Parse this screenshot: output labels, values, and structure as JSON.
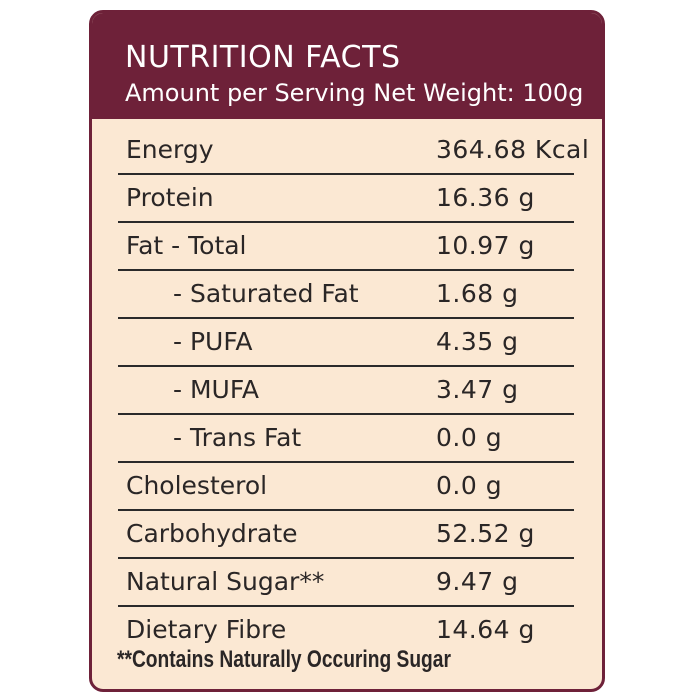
{
  "header": {
    "title": "NUTRITION FACTS",
    "subtitle": "Amount per Serving Net Weight: 100g"
  },
  "table": {
    "rows": [
      [
        "Energy",
        "364.68 Kcal"
      ],
      [
        "Protein",
        "16.36 g"
      ],
      [
        "Fat - Total",
        "10.97 g"
      ],
      [
        "- Saturated Fat",
        "1.68 g"
      ],
      [
        "- PUFA",
        "4.35 g"
      ],
      [
        "- MUFA",
        "3.47 g"
      ],
      [
        "- Trans Fat",
        "0.0 g"
      ],
      [
        "Cholesterol",
        "0.0 g"
      ],
      [
        "Carbohydrate",
        "52.52 g"
      ],
      [
        "Natural Sugar**",
        "9.47 g"
      ],
      [
        "Dietary Fibre",
        "14.64 g"
      ]
    ]
  },
  "footnote": "**Contains Naturally Occuring Sugar"
}
